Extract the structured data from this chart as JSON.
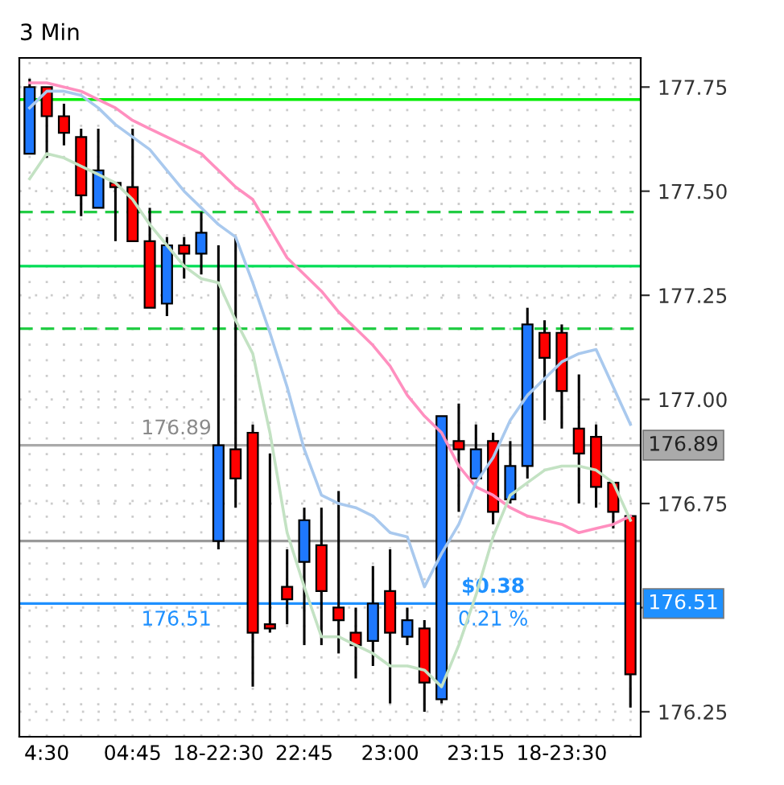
{
  "chart_data": {
    "type": "candlestick",
    "title": "3 Min",
    "categories": [
      null,
      "4:30",
      null,
      null,
      null,
      null,
      "04:45",
      null,
      null,
      null,
      null,
      "18-22:30",
      null,
      null,
      null,
      null,
      "22:45",
      null,
      null,
      null,
      null,
      "23:00",
      null,
      null,
      null,
      null,
      "23:15",
      null,
      null,
      null,
      null,
      "18-23:30",
      null,
      null,
      null,
      null
    ],
    "ohlc": [
      [
        177.59,
        177.77,
        177.59,
        177.75
      ],
      [
        177.75,
        177.75,
        177.58,
        177.68
      ],
      [
        177.68,
        177.71,
        177.61,
        177.64
      ],
      [
        177.63,
        177.65,
        177.44,
        177.49
      ],
      [
        177.46,
        177.65,
        177.46,
        177.55
      ],
      [
        177.52,
        177.52,
        177.38,
        177.51
      ],
      [
        177.51,
        177.65,
        177.38,
        177.38
      ],
      [
        177.38,
        177.46,
        177.22,
        177.22
      ],
      [
        177.23,
        177.39,
        177.2,
        177.37
      ],
      [
        177.37,
        177.39,
        177.29,
        177.35
      ],
      [
        177.35,
        177.45,
        177.3,
        177.4
      ],
      [
        176.66,
        177.37,
        176.64,
        176.89
      ],
      [
        176.88,
        177.39,
        176.74,
        176.81
      ],
      [
        176.92,
        176.94,
        176.31,
        176.44
      ],
      [
        176.46,
        176.87,
        176.44,
        176.45
      ],
      [
        176.55,
        176.64,
        176.46,
        176.52
      ],
      [
        176.61,
        176.74,
        176.41,
        176.71
      ],
      [
        176.65,
        176.74,
        176.41,
        176.54
      ],
      [
        176.5,
        176.78,
        176.39,
        176.47
      ],
      [
        176.44,
        176.5,
        176.33,
        176.41
      ],
      [
        176.42,
        176.6,
        176.36,
        176.51
      ],
      [
        176.54,
        176.64,
        176.27,
        176.44
      ],
      [
        176.43,
        176.5,
        176.41,
        176.47
      ],
      [
        176.45,
        176.47,
        176.25,
        176.32
      ],
      [
        176.28,
        176.96,
        176.27,
        176.96
      ],
      [
        176.9,
        176.99,
        176.73,
        176.88
      ],
      [
        176.81,
        176.94,
        176.81,
        176.88
      ],
      [
        176.9,
        176.92,
        176.7,
        176.73
      ],
      [
        176.76,
        176.9,
        176.75,
        176.84
      ],
      [
        176.84,
        177.22,
        176.81,
        177.18
      ],
      [
        177.16,
        177.19,
        176.95,
        177.1
      ],
      [
        177.16,
        177.18,
        176.93,
        177.02
      ],
      [
        176.93,
        177.06,
        176.75,
        176.87
      ],
      [
        176.91,
        176.94,
        176.74,
        176.79
      ],
      [
        176.8,
        176.8,
        176.69,
        176.73
      ],
      [
        176.72,
        176.72,
        176.26,
        176.34
      ]
    ],
    "colors": [
      "#1e78ff",
      "#ff0000",
      "#ff0000",
      "#ff0000",
      "#1e78ff",
      "#ff0000",
      "#ff0000",
      "#ff0000",
      "#1e78ff",
      "#ff0000",
      "#1e78ff",
      "#1e78ff",
      "#ff0000",
      "#ff0000",
      "#ff0000",
      "#ff0000",
      "#1e78ff",
      "#ff0000",
      "#ff0000",
      "#ff0000",
      "#1e78ff",
      "#ff0000",
      "#1e78ff",
      "#ff0000",
      "#1e78ff",
      "#ff0000",
      "#1e78ff",
      "#ff0000",
      "#1e78ff",
      "#1e78ff",
      "#ff0000",
      "#ff0000",
      "#ff0000",
      "#ff0000",
      "#ff0000",
      "#ff0000"
    ],
    "series": [
      {
        "type": "line",
        "color": "#ff8fbf",
        "values": [
          177.76,
          177.76,
          177.75,
          177.74,
          177.72,
          177.7,
          177.67,
          177.65,
          177.63,
          177.61,
          177.59,
          177.55,
          177.51,
          177.48,
          177.41,
          177.34,
          177.3,
          177.26,
          177.21,
          177.17,
          177.13,
          177.08,
          177.01,
          176.96,
          176.92,
          176.84,
          176.79,
          176.77,
          176.74,
          176.72,
          176.71,
          176.7,
          176.68,
          176.69,
          176.7,
          176.72
        ]
      },
      {
        "type": "line",
        "color": "#a9c9ee",
        "values": [
          177.7,
          177.74,
          177.74,
          177.73,
          177.7,
          177.66,
          177.63,
          177.6,
          177.55,
          177.5,
          177.46,
          177.42,
          177.39,
          177.28,
          177.16,
          177.03,
          176.88,
          176.77,
          176.75,
          176.74,
          176.72,
          176.68,
          176.67,
          176.55,
          176.63,
          176.7,
          176.8,
          176.86,
          176.95,
          177.01,
          177.05,
          177.09,
          177.11,
          177.12,
          177.03,
          176.94
        ]
      },
      {
        "type": "line",
        "color": "#c3e2c3",
        "values": [
          177.53,
          177.59,
          177.58,
          177.56,
          177.54,
          177.52,
          177.48,
          177.42,
          177.37,
          177.32,
          177.29,
          177.28,
          177.19,
          177.11,
          176.92,
          176.68,
          176.55,
          176.43,
          176.43,
          176.41,
          176.39,
          176.36,
          176.36,
          176.35,
          176.31,
          176.41,
          176.53,
          176.67,
          176.77,
          176.8,
          176.83,
          176.84,
          176.84,
          176.83,
          176.8,
          176.71
        ]
      }
    ],
    "ylim": [
      176.19,
      177.82
    ],
    "yticks": [
      176.25,
      {
        "value": 176.5,
        "label": null
      },
      176.75,
      {
        "value": 177.0,
        "label": "177.00"
      },
      177.25,
      {
        "value": 177.5,
        "label": "177.50"
      },
      177.75
    ],
    "ref_lines": [
      {
        "axis": "y",
        "value": 177.72,
        "color": "#00ee00",
        "line_style": "solid"
      },
      {
        "axis": "y",
        "value": 177.45,
        "color": "#22cc44",
        "line_style": "dashed"
      },
      {
        "axis": "y",
        "value": 177.32,
        "color": "#00dd55",
        "line_style": "solid"
      },
      {
        "axis": "y",
        "value": 177.17,
        "color": "#22cc44",
        "line_style": "dashed"
      },
      {
        "axis": "y",
        "value": 176.89,
        "label": "176.89",
        "color": "#aaaaaa",
        "line_style": "solid"
      },
      {
        "axis": "y",
        "value": 176.66,
        "color": "#999999",
        "line_style": "solid"
      },
      {
        "axis": "y",
        "value": 176.51,
        "label": "176.51",
        "color": "#1e90ff",
        "line_style": "solid"
      }
    ],
    "annotations": [
      {
        "text": "176.89",
        "y": 176.89
      },
      {
        "text": "176.51",
        "y": 176.51
      },
      {
        "text": "$0.38",
        "y": 176.51
      },
      {
        "text": "0.21 %",
        "y": 176.51
      }
    ],
    "grid": true
  }
}
